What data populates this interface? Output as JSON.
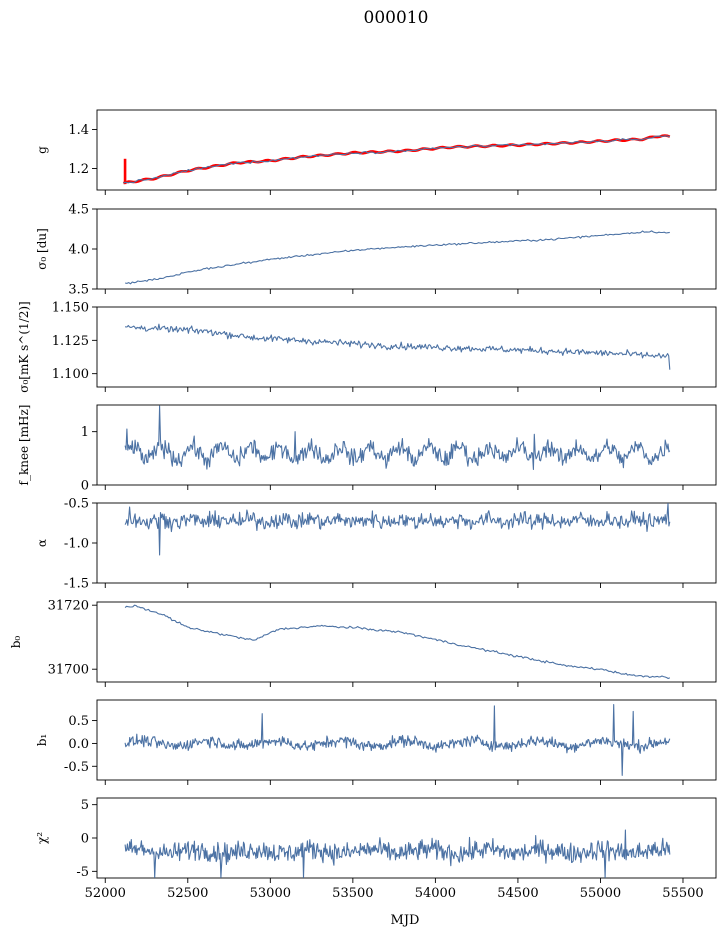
{
  "figure": {
    "title": "000010",
    "xlabel": "MJD",
    "xlim": [
      51950,
      55700
    ],
    "xticks": [
      52000,
      52500,
      53000,
      53500,
      54000,
      54500,
      55000,
      55500
    ],
    "series_color": "#4c72a4",
    "fit_color": "#ff0000"
  },
  "chart_data": [
    {
      "id": "g",
      "type": "line",
      "ylabel": "g",
      "ylim": [
        1.09,
        1.5
      ],
      "yticks": [
        "1.2",
        "1.4"
      ],
      "x_start": 52110,
      "x_end": 55420,
      "n": 220,
      "noise": 0.004,
      "anchors": [
        [
          52110,
          1.125
        ],
        [
          52300,
          1.15
        ],
        [
          52500,
          1.19
        ],
        [
          52800,
          1.23
        ],
        [
          53000,
          1.24
        ],
        [
          53200,
          1.26
        ],
        [
          53500,
          1.28
        ],
        [
          53800,
          1.29
        ],
        [
          54100,
          1.31
        ],
        [
          54500,
          1.32
        ],
        [
          54900,
          1.335
        ],
        [
          55100,
          1.345
        ],
        [
          55250,
          1.35
        ],
        [
          55380,
          1.37
        ],
        [
          55420,
          1.36
        ]
      ],
      "overlay": {
        "name": "model fit",
        "wiggle": 0.004
      },
      "spike": {
        "x": 52120,
        "from": 1.12,
        "to": 1.25
      }
    },
    {
      "id": "sigma0-du",
      "type": "line",
      "ylabel": "σ₀ [du]",
      "ylim": [
        3.5,
        4.5
      ],
      "yticks": [
        "3.5",
        "4.0",
        "4.5"
      ],
      "x_start": 52120,
      "x_end": 55420,
      "n": 300,
      "noise": 0.008,
      "anchors": [
        [
          52120,
          3.57
        ],
        [
          52300,
          3.62
        ],
        [
          52600,
          3.75
        ],
        [
          53000,
          3.87
        ],
        [
          53300,
          3.94
        ],
        [
          53600,
          4.0
        ],
        [
          54000,
          4.05
        ],
        [
          54300,
          4.08
        ],
        [
          54700,
          4.12
        ],
        [
          55000,
          4.17
        ],
        [
          55300,
          4.22
        ],
        [
          55420,
          4.2
        ]
      ]
    },
    {
      "id": "sigma0-mks",
      "type": "line",
      "ylabel": "σ₀[mK s^(1/2)]",
      "ylim": [
        1.09,
        1.15
      ],
      "yticks": [
        "1.100",
        "1.125",
        "1.150"
      ],
      "x_start": 52120,
      "x_end": 55420,
      "n": 500,
      "noise": 0.0018,
      "anchors": [
        [
          52120,
          1.135
        ],
        [
          52600,
          1.132
        ],
        [
          52900,
          1.127
        ],
        [
          53300,
          1.124
        ],
        [
          53700,
          1.121
        ],
        [
          54200,
          1.119
        ],
        [
          54700,
          1.117
        ],
        [
          55100,
          1.115
        ],
        [
          55400,
          1.113
        ]
      ],
      "drop": {
        "x": 55420,
        "to": 1.103
      }
    },
    {
      "id": "f-knee",
      "type": "line",
      "ylabel": "f_knee [mHz]",
      "ylim": [
        0,
        1.5
      ],
      "yticks": [
        "0",
        "1"
      ],
      "x_start": 52120,
      "x_end": 55420,
      "n": 600,
      "noise": 0.12,
      "base": 0.6,
      "wave_amp": 0.12,
      "wave_period": 180,
      "spikes": [
        [
          52330,
          1.48
        ],
        [
          52130,
          1.05
        ],
        [
          53150,
          1.0
        ],
        [
          54600,
          0.95
        ]
      ]
    },
    {
      "id": "alpha",
      "type": "line",
      "ylabel": "α",
      "ylim": [
        -1.5,
        -0.5
      ],
      "yticks": [
        "-1.5",
        "-1.0",
        "-0.5"
      ],
      "x_start": 52120,
      "x_end": 55420,
      "n": 600,
      "noise": 0.07,
      "base": -0.72,
      "wave_amp": 0.02,
      "wave_period": 180,
      "spikes": [
        [
          52330,
          -1.15
        ],
        [
          52150,
          -0.55
        ],
        [
          55410,
          -0.5
        ]
      ]
    },
    {
      "id": "b0",
      "type": "line",
      "ylabel": "b₀",
      "ylim": [
        31696,
        31721
      ],
      "yticks": [
        "31700",
        "31720"
      ],
      "x_start": 52120,
      "x_end": 55420,
      "n": 350,
      "noise": 0.25,
      "anchors": [
        [
          52120,
          31719.5
        ],
        [
          52200,
          31719.6
        ],
        [
          52350,
          31717
        ],
        [
          52500,
          31713
        ],
        [
          52900,
          31709
        ],
        [
          53050,
          31712.5
        ],
        [
          53300,
          31713.5
        ],
        [
          53500,
          31713
        ],
        [
          53800,
          31711.5
        ],
        [
          54200,
          31707
        ],
        [
          54500,
          31704
        ],
        [
          54800,
          31701
        ],
        [
          55000,
          31700
        ],
        [
          55200,
          31698
        ],
        [
          55420,
          31697.5
        ]
      ]
    },
    {
      "id": "b1",
      "type": "line",
      "ylabel": "b₁",
      "ylim": [
        -0.8,
        0.95
      ],
      "yticks": [
        "-0.5",
        "0.0",
        "0.5"
      ],
      "x_start": 52120,
      "x_end": 55420,
      "n": 700,
      "noise": 0.09,
      "base": 0.0,
      "wave_amp": 0.06,
      "wave_period": 400,
      "spikes": [
        [
          54360,
          0.82
        ],
        [
          55080,
          0.85
        ],
        [
          55130,
          -0.7
        ],
        [
          55200,
          0.7
        ],
        [
          52950,
          0.65
        ]
      ]
    },
    {
      "id": "chi2",
      "type": "line",
      "ylabel": "χ²",
      "ylim": [
        -6,
        6
      ],
      "yticks": [
        "-5",
        "0",
        "5"
      ],
      "x_start": 52120,
      "x_end": 55420,
      "n": 700,
      "noise": 1.1,
      "base": -2.0,
      "wave_amp": 0.3,
      "wave_period": 350,
      "spikes": [
        [
          52300,
          -6
        ],
        [
          52700,
          -6
        ],
        [
          53200,
          -6
        ],
        [
          55150,
          1.2
        ],
        [
          55030,
          -6
        ]
      ]
    }
  ]
}
